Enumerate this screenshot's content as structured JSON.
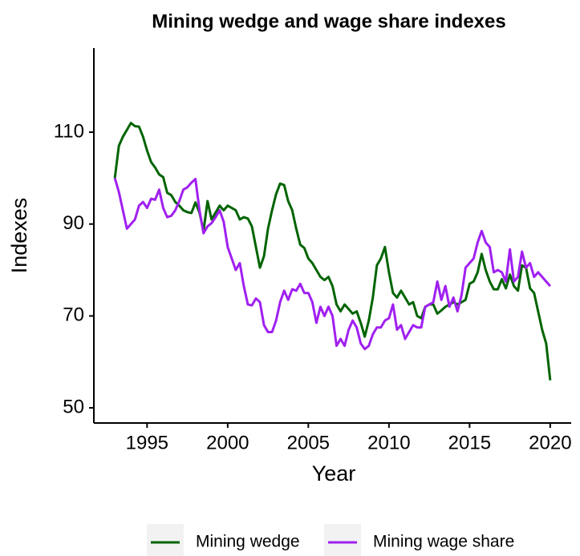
{
  "chart_data": {
    "type": "line",
    "title": "Mining wedge and wage share indexes",
    "xlabel": "Year",
    "ylabel": "Indexes",
    "x": [
      1993,
      1993.25,
      1993.5,
      1993.75,
      1994,
      1994.25,
      1994.5,
      1994.75,
      1995,
      1995.25,
      1995.5,
      1995.75,
      1996,
      1996.25,
      1996.5,
      1996.75,
      1997,
      1997.25,
      1997.5,
      1997.75,
      1998,
      1998.25,
      1998.5,
      1998.75,
      1999,
      1999.25,
      1999.5,
      1999.75,
      2000,
      2000.25,
      2000.5,
      2000.75,
      2001,
      2001.25,
      2001.5,
      2001.75,
      2002,
      2002.25,
      2002.5,
      2002.75,
      2003,
      2003.25,
      2003.5,
      2003.75,
      2004,
      2004.25,
      2004.5,
      2004.75,
      2005,
      2005.25,
      2005.5,
      2005.75,
      2006,
      2006.25,
      2006.5,
      2006.75,
      2007,
      2007.25,
      2007.5,
      2007.75,
      2008,
      2008.25,
      2008.5,
      2008.75,
      2009,
      2009.25,
      2009.5,
      2009.75,
      2010,
      2010.25,
      2010.5,
      2010.75,
      2011,
      2011.25,
      2011.5,
      2011.75,
      2012,
      2012.25,
      2012.5,
      2012.75,
      2013,
      2013.25,
      2013.5,
      2013.75,
      2014,
      2014.25,
      2014.5,
      2014.75,
      2015,
      2015.25,
      2015.5,
      2015.75,
      2016,
      2016.25,
      2016.5,
      2016.75,
      2017,
      2017.25,
      2017.5,
      2017.75,
      2018,
      2018.25,
      2018.5,
      2018.75,
      2019,
      2019.25,
      2019.5,
      2019.75,
      2020
    ],
    "series": [
      {
        "name": "Mining wedge",
        "color": "#006400",
        "values": [
          100,
          107,
          109,
          110.5,
          112,
          111.3,
          111.2,
          109,
          106,
          103.5,
          102.3,
          100.8,
          100.2,
          96.8,
          96.3,
          94.8,
          94,
          93,
          92.6,
          92.4,
          94.7,
          92.5,
          88.5,
          95,
          91,
          92.5,
          94,
          93,
          94,
          93.5,
          93,
          91,
          91.5,
          91.2,
          89.5,
          85,
          80.5,
          83,
          89,
          93,
          96.5,
          98.8,
          98.5,
          95,
          93,
          89,
          85.5,
          84.8,
          82.5,
          81.5,
          80,
          78.5,
          77.8,
          78.5,
          76.5,
          72.5,
          71,
          72.5,
          71.5,
          70.5,
          71,
          68.5,
          65.5,
          69,
          74,
          81,
          82.5,
          85,
          79.5,
          75,
          74,
          75.5,
          74,
          72.5,
          73,
          70,
          69.5,
          72,
          72.5,
          72.5,
          70.5,
          71.2,
          72,
          72.5,
          73,
          72.5,
          73,
          73.5,
          77,
          77.5,
          79.5,
          83.5,
          80,
          77.5,
          75.8,
          75.8,
          78,
          76,
          79,
          76.5,
          75.5,
          81,
          80.5,
          76,
          75,
          71,
          67,
          64,
          56
        ]
      },
      {
        "name": "Mining wage share",
        "color": "#a020f0",
        "values": [
          100,
          97,
          93,
          89,
          90,
          91,
          94,
          94.8,
          93.5,
          95.5,
          95.3,
          97.5,
          93.5,
          91.5,
          91.8,
          93,
          95,
          97.5,
          98,
          99,
          99.8,
          93,
          88,
          89.5,
          90.2,
          91.5,
          93,
          90.5,
          85,
          82.5,
          80,
          81.5,
          76.5,
          72.5,
          72.3,
          73.8,
          73,
          68,
          66.5,
          66.5,
          69,
          73,
          75.5,
          73.5,
          75.8,
          75.5,
          77,
          75,
          75,
          73,
          68.5,
          72,
          70,
          72,
          70,
          63.5,
          65,
          63.5,
          67,
          69,
          67.5,
          64,
          62.8,
          63.5,
          66,
          67.5,
          67.5,
          69,
          69.5,
          72.5,
          67,
          68,
          65,
          66.5,
          68,
          67.5,
          67.5,
          72,
          72.5,
          73,
          77.5,
          73.5,
          76.5,
          72,
          74,
          71,
          74.5,
          80.5,
          81.5,
          82.5,
          86,
          88.5,
          86,
          85,
          79.5,
          80,
          79.5,
          77.5,
          84.5,
          77.5,
          78.5,
          84,
          80.5,
          81.5,
          78.5,
          79.5,
          78.5,
          77.5,
          76.5
        ]
      }
    ],
    "xlim": [
      1991.7,
      2021.3
    ],
    "ylim": [
      46.7,
      128.3
    ],
    "xticks": [
      1995,
      2000,
      2005,
      2010,
      2015,
      2020
    ],
    "yticks": [
      50,
      70,
      90,
      110
    ],
    "legend": "bottom"
  }
}
